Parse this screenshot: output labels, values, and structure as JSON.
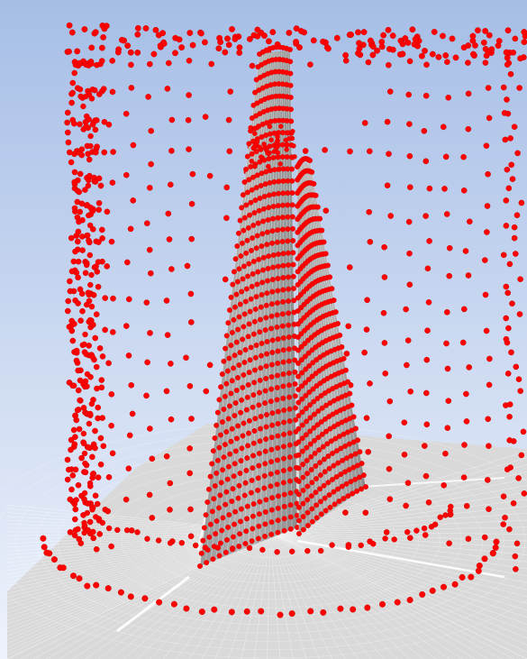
{
  "viewport": {
    "background_top": "#a6bee6",
    "background_bottom": "#eef2fb"
  },
  "colors": {
    "ground": "#d9d9d9",
    "ground_lines": "#ffffff",
    "blade_fill": "#a8a8a8",
    "blade_lines": "#ffffff",
    "points": "#ff0000",
    "points_edge": "#c40000"
  }
}
